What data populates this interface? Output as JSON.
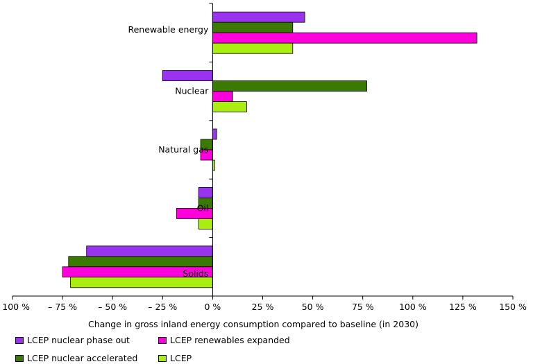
{
  "chart_data": {
    "type": "bar",
    "orientation": "horizontal",
    "categories": [
      "Renewable energy",
      "Nuclear",
      "Natural gas",
      "Oil",
      "Solids"
    ],
    "xlabel": "Change in gross inland energy consumption compared to baseline (in 2030)",
    "xlim": [
      -100,
      150
    ],
    "xticks": [
      -100,
      -75,
      -50,
      -25,
      0,
      25,
      50,
      75,
      100,
      125,
      150
    ],
    "xtick_labels": [
      "– 100 %",
      "– 75 %",
      "– 50 %",
      "– 25 %",
      "0 %",
      "25 %",
      "50 %",
      "75 %",
      "100 %",
      "125 %",
      "150 %"
    ],
    "grid": false,
    "legend_position": "bottom",
    "series": [
      {
        "name": "LCEP nuclear phase out",
        "color": "#9933ee",
        "values": [
          46,
          -25,
          2,
          -7,
          -63
        ]
      },
      {
        "name": "LCEP nuclear accelerated",
        "color": "#3a7a00",
        "values": [
          40,
          77,
          -6,
          -7,
          -72
        ]
      },
      {
        "name": "LCEP renewables expanded",
        "color": "#ff00dd",
        "values": [
          132,
          10,
          -6,
          -18,
          -75
        ]
      },
      {
        "name": "LCEP",
        "color": "#aaee11",
        "values": [
          40,
          17,
          1,
          -7,
          -71
        ]
      }
    ]
  }
}
